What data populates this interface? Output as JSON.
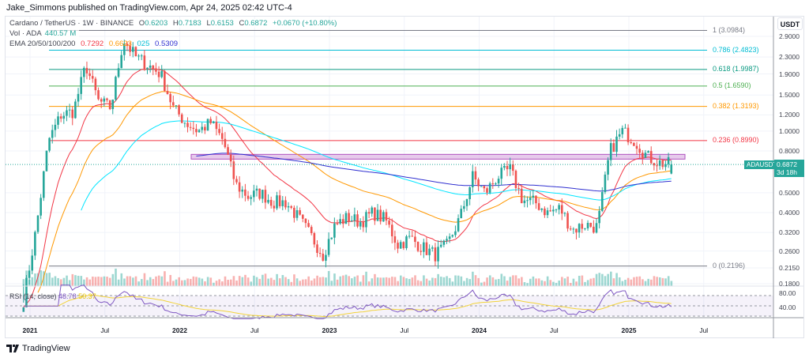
{
  "header": {
    "published": "Jake_Simmons published on TradingView.com, Apr 24, 2025 02:42 UTC-4"
  },
  "legend": {
    "symbol": "Cardano / TetherUS · 1W · BINANCE",
    "ohlc": {
      "o_label": "O",
      "o": "0.6203",
      "h_label": "H",
      "h": "0.7183",
      "l_label": "L",
      "l": "0.6153",
      "c_label": "C",
      "c": "0.6872",
      "change": "+0.0670 (+10.80%)"
    },
    "vol_label": "Vol · ADA",
    "vol": "440.57 M",
    "ema_label": "EMA 20/50/100/200",
    "ema": [
      "0.7292",
      "0.6623",
      "025",
      "0.5309"
    ]
  },
  "axis": {
    "currency": "USDT",
    "price_ticks": [
      "2.9000",
      "2.3000",
      "1.9000",
      "1.5000",
      "1.2000",
      "1.0000",
      "0.8000",
      "0.5000",
      "0.4000",
      "0.3200",
      "0.2600",
      "0.2150",
      "0.1800"
    ],
    "rsi_ticks": [
      "80.00",
      "40.00"
    ],
    "time_ticks": [
      "2021",
      "Jul",
      "2022",
      "Jul",
      "2023",
      "Jul",
      "2024",
      "Jul",
      "2025",
      "Jul"
    ]
  },
  "fib": [
    {
      "label": "1 (3.0984)",
      "value": 3.0984,
      "color": "#787b86"
    },
    {
      "label": "0.786 (2.4823)",
      "value": 2.4823,
      "color": "#00bcd4"
    },
    {
      "label": "0.618 (1.9987)",
      "value": 1.9987,
      "color": "#089981"
    },
    {
      "label": "0.5 (1.6590)",
      "value": 1.659,
      "color": "#4caf50"
    },
    {
      "label": "0.382 (1.3193)",
      "value": 1.3193,
      "color": "#ff9800"
    },
    {
      "label": "0.236 (0.8990)",
      "value": 0.899,
      "color": "#f23645"
    },
    {
      "label": "0 (0.2196)",
      "value": 0.2196,
      "color": "#787b86"
    }
  ],
  "resistance_zone": [
    0.73,
    0.77
  ],
  "price_tag": {
    "symbol": "ADAUSDT",
    "price": "0.6872",
    "countdown": "3d 18h"
  },
  "rsi": {
    "label": "RSI (14, close)",
    "value": "48.78",
    "ma": "50.37"
  },
  "colors": {
    "up": "#26a69a",
    "down": "#ef5350",
    "ema20": "#f23645",
    "ema50": "#ff9800",
    "ema100": "#00e5ff",
    "ema200": "#3030d0",
    "rsi": "#7e57c2"
  },
  "logo": "TradingView",
  "chart_data": {
    "type": "candlestick",
    "scale": "log",
    "interval": "1W",
    "ylim": [
      0.18,
      2.9
    ],
    "approx_monthly_close": [
      [
        "2020-12",
        0.15
      ],
      [
        "2021-01",
        0.33
      ],
      [
        "2021-02",
        0.9
      ],
      [
        "2021-03",
        1.2
      ],
      [
        "2021-04",
        1.25
      ],
      [
        "2021-05",
        2.1
      ],
      [
        "2021-06",
        1.4
      ],
      [
        "2021-07",
        1.3
      ],
      [
        "2021-08",
        2.8
      ],
      [
        "2021-09",
        2.3
      ],
      [
        "2021-10",
        2.1
      ],
      [
        "2021-11",
        1.9
      ],
      [
        "2021-12",
        1.3
      ],
      [
        "2022-01",
        1.1
      ],
      [
        "2022-02",
        1.0
      ],
      [
        "2022-03",
        1.1
      ],
      [
        "2022-04",
        0.9
      ],
      [
        "2022-05",
        0.55
      ],
      [
        "2022-06",
        0.48
      ],
      [
        "2022-07",
        0.5
      ],
      [
        "2022-08",
        0.45
      ],
      [
        "2022-09",
        0.45
      ],
      [
        "2022-10",
        0.38
      ],
      [
        "2022-11",
        0.31
      ],
      [
        "2022-12",
        0.25
      ],
      [
        "2023-01",
        0.35
      ],
      [
        "2023-02",
        0.38
      ],
      [
        "2023-03",
        0.36
      ],
      [
        "2023-04",
        0.4
      ],
      [
        "2023-05",
        0.37
      ],
      [
        "2023-06",
        0.28
      ],
      [
        "2023-07",
        0.3
      ],
      [
        "2023-08",
        0.27
      ],
      [
        "2023-09",
        0.25
      ],
      [
        "2023-10",
        0.28
      ],
      [
        "2023-11",
        0.38
      ],
      [
        "2023-12",
        0.6
      ],
      [
        "2024-01",
        0.5
      ],
      [
        "2024-02",
        0.6
      ],
      [
        "2024-03",
        0.65
      ],
      [
        "2024-04",
        0.46
      ],
      [
        "2024-05",
        0.45
      ],
      [
        "2024-06",
        0.4
      ],
      [
        "2024-07",
        0.42
      ],
      [
        "2024-08",
        0.33
      ],
      [
        "2024-09",
        0.35
      ],
      [
        "2024-10",
        0.34
      ],
      [
        "2024-11",
        0.8
      ],
      [
        "2024-12",
        1.0
      ],
      [
        "2025-01",
        0.9
      ],
      [
        "2025-02",
        0.75
      ],
      [
        "2025-03",
        0.7
      ],
      [
        "2025-04",
        0.6872
      ]
    ]
  }
}
